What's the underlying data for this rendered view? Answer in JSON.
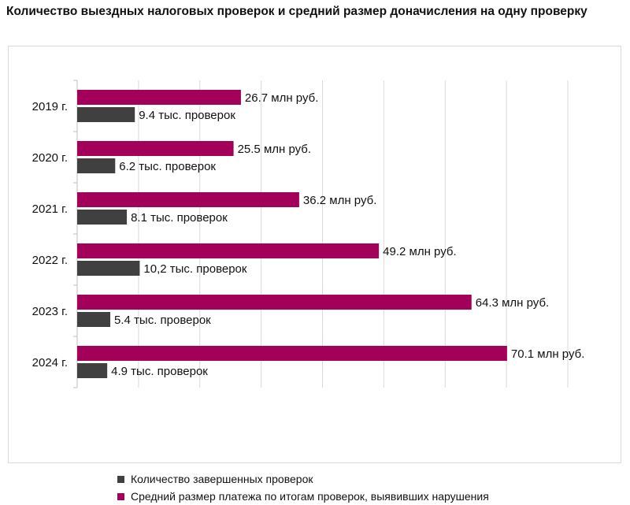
{
  "title": "Количество выездных налоговых проверок и средний размер доначисления на одну проверку",
  "chart_data": {
    "type": "bar",
    "orientation": "horizontal",
    "categories": [
      "2019 г.",
      "2020 г.",
      "2021 г.",
      "2022 г.",
      "2023 г.",
      "2024 г."
    ],
    "series": [
      {
        "name": "Средний размер платежа по итогам проверок, выявивших нарушения",
        "color": "#A3005A",
        "values": [
          26.7,
          25.5,
          36.2,
          49.2,
          64.3,
          70.1
        ],
        "labels": [
          "26.7 млн руб.",
          "25.5 млн руб.",
          "36.2 млн руб.",
          "49.2 млн руб.",
          "64.3 млн руб.",
          "70.1 млн руб."
        ]
      },
      {
        "name": "Количество завершенных проверок",
        "color": "#404040",
        "values": [
          9.4,
          6.2,
          8.1,
          10.2,
          5.4,
          4.9
        ],
        "labels": [
          "9.4 тыс. проверок",
          "6.2 тыс. проверок",
          "8.1 тыс. проверок",
          "10,2 тыс. проверок",
          "5.4 тыс. проверок",
          "4.9 тыс. проверок"
        ]
      }
    ],
    "xlim": [
      0,
      80
    ],
    "gridlines": true,
    "x_tick_labels_visible": false,
    "legend_position": "bottom-left"
  },
  "legend": {
    "items": [
      {
        "label": "Количество завершенных проверок",
        "color": "#404040"
      },
      {
        "label": "Средний размер платежа по итогам проверок, выявивших нарушения",
        "color": "#A3005A"
      }
    ]
  }
}
